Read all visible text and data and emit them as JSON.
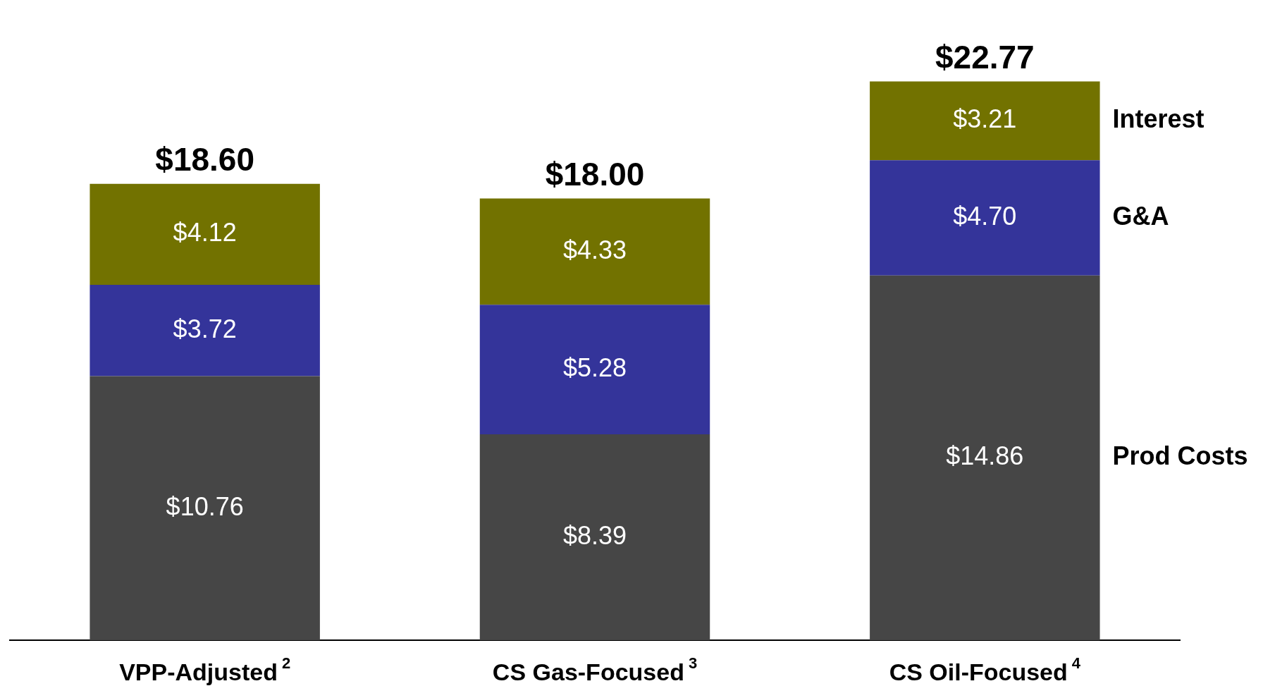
{
  "chart_data": {
    "type": "bar",
    "stacked": true,
    "categories": [
      "VPP-Adjusted$^{2}$",
      "CS Gas-Focused$^{3}$",
      "CS Oil-Focused$^{4}$"
    ],
    "series": [
      {
        "name": "Prod Costs",
        "color": "#464646",
        "values": [
          10.76,
          8.39,
          14.86
        ],
        "value_labels": [
          "$10.76",
          "$8.39",
          "$14.86"
        ]
      },
      {
        "name": "G&A",
        "color": "#34349a",
        "values": [
          3.72,
          5.28,
          4.7
        ],
        "value_labels": [
          "$3.72",
          "$5.28",
          "$4.70"
        ]
      },
      {
        "name": "Interest",
        "color": "#727200",
        "values": [
          4.12,
          4.33,
          3.21
        ],
        "value_labels": [
          "$4.12",
          "$4.33",
          "$3.21"
        ]
      }
    ],
    "totals": [
      "$18.60",
      "$18.00",
      "$22.77"
    ],
    "legend": false,
    "grid": false,
    "tick_labels": "x"
  }
}
